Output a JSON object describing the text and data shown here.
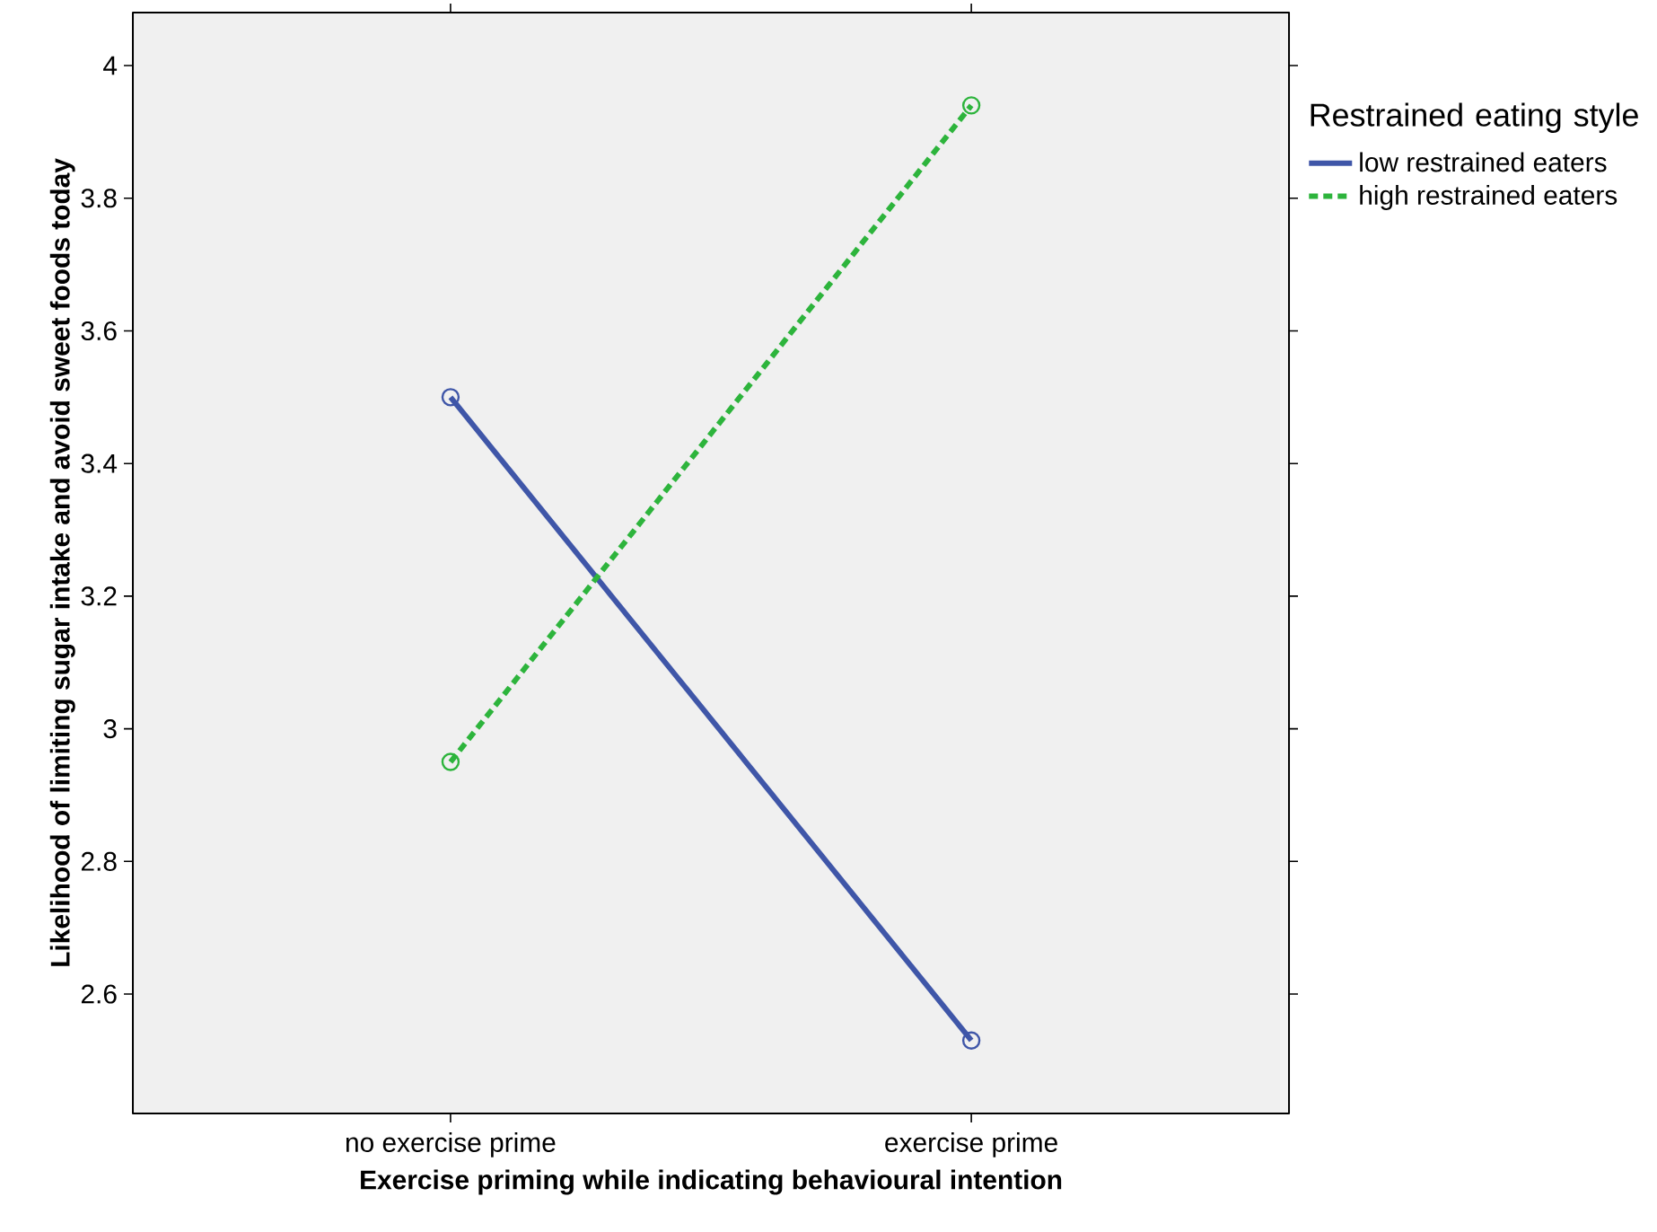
{
  "chart_data": {
    "type": "line",
    "xlabel": "Exercise priming while indicating behavioural intention",
    "ylabel": "Likelihood of limiting sugar intake and avoid sweet foods today",
    "legend_title": "Restrained eating style",
    "categories": [
      "no exercise prime",
      "exercise prime"
    ],
    "series": [
      {
        "name": "low  restrained eaters",
        "color": "#3f56a8",
        "values": [
          3.5,
          2.53
        ],
        "line_style": "solid"
      },
      {
        "name": "high restrained eaters",
        "color": "#2db43c",
        "values": [
          2.95,
          3.94
        ],
        "line_style": "dashed"
      }
    ],
    "ylim": [
      2.42,
      4.08
    ],
    "yticks": [
      2.6,
      2.8,
      3,
      3.2,
      3.4,
      3.6,
      3.8,
      4
    ],
    "marker": "circle",
    "legend": "right",
    "grid": false
  }
}
